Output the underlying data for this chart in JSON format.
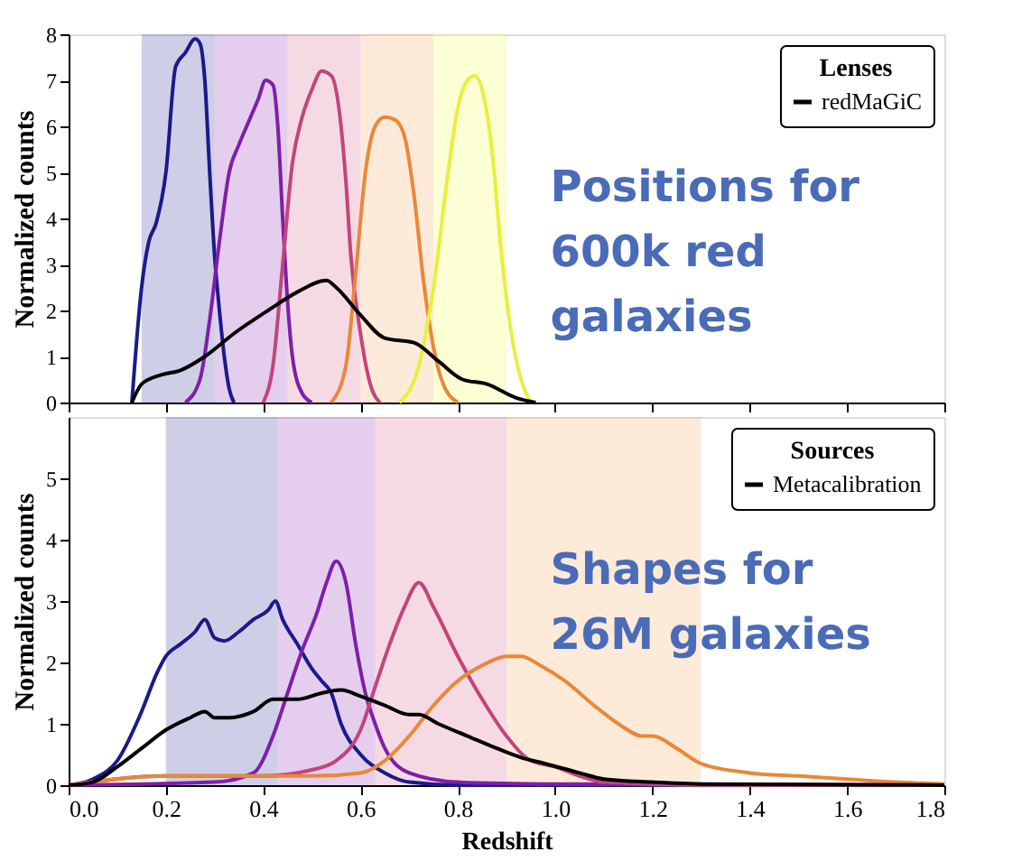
{
  "chart_data": [
    {
      "type": "line",
      "ylabel": "Normalized counts",
      "legend_title": "Lenses",
      "legend": "top right",
      "grid": false,
      "tick_labels": "y",
      "marker": "none",
      "line_style": "solid",
      "xlim": [
        0,
        1.8
      ],
      "xticks": [
        0,
        0.2,
        0.4,
        0.6,
        0.8,
        1.0,
        1.2,
        1.4,
        1.6,
        1.8
      ],
      "ylim": [
        0,
        8
      ],
      "yticks": [
        0,
        1,
        2,
        3,
        4,
        5,
        6,
        7,
        8
      ],
      "annotations": [
        "Positions for\n600k red\ngalaxies"
      ],
      "bands": [
        {
          "axis": "x",
          "from": 0.15,
          "to": 0.3,
          "color": "#0d0887"
        },
        {
          "axis": "x",
          "from": 0.3,
          "to": 0.45,
          "color": "#7e03a8"
        },
        {
          "axis": "x",
          "from": 0.45,
          "to": 0.6,
          "color": "#cc4778"
        },
        {
          "axis": "x",
          "from": 0.6,
          "to": 0.75,
          "color": "#f89540"
        },
        {
          "axis": "x",
          "from": 0.75,
          "to": 0.9,
          "color": "#f0f921"
        }
      ],
      "series": [
        {
          "color": "#1a1a8c",
          "x": [
            0.13,
            0.15,
            0.165,
            0.18,
            0.2,
            0.22,
            0.24,
            0.26,
            0.27,
            0.28,
            0.29,
            0.3,
            0.31,
            0.32,
            0.33,
            0.34
          ],
          "values": [
            0,
            2.5,
            3.5,
            3.9,
            5,
            7.3,
            7.6,
            7.9,
            7.8,
            7,
            5,
            3.2,
            2,
            1,
            0.3,
            0
          ]
        },
        {
          "color": "#7e1fa8",
          "x": [
            0.24,
            0.27,
            0.29,
            0.31,
            0.33,
            0.35,
            0.37,
            0.39,
            0.405,
            0.42,
            0.43,
            0.44,
            0.45,
            0.46,
            0.48,
            0.5
          ],
          "values": [
            0,
            0.5,
            1.8,
            3.5,
            5,
            5.6,
            6.1,
            6.6,
            7.0,
            6.9,
            6,
            4,
            2.2,
            1,
            0.2,
            0
          ]
        },
        {
          "color": "#c2457a",
          "x": [
            0.4,
            0.42,
            0.44,
            0.46,
            0.48,
            0.5,
            0.52,
            0.54,
            0.56,
            0.57,
            0.58,
            0.6,
            0.62,
            0.64
          ],
          "values": [
            0,
            0.8,
            3,
            5.2,
            6.2,
            6.8,
            7.2,
            7.1,
            6.0,
            4.8,
            3.2,
            1.5,
            0.4,
            0
          ]
        },
        {
          "color": "#e8883a",
          "x": [
            0.54,
            0.57,
            0.59,
            0.61,
            0.63,
            0.65,
            0.67,
            0.69,
            0.71,
            0.73,
            0.75,
            0.77,
            0.8
          ],
          "values": [
            0,
            0.8,
            2.8,
            5.0,
            6.0,
            6.2,
            6.15,
            5.8,
            4.5,
            2.6,
            1.2,
            0.4,
            0
          ]
        },
        {
          "color": "#e6f040",
          "x": [
            0.68,
            0.72,
            0.75,
            0.78,
            0.8,
            0.82,
            0.835,
            0.85,
            0.87,
            0.89,
            0.91,
            0.93,
            0.95
          ],
          "values": [
            0,
            0.8,
            2.5,
            5,
            6.4,
            7.0,
            7.1,
            6.8,
            5.5,
            3.2,
            1.5,
            0.5,
            0
          ]
        },
        {
          "name": "redMaGiC",
          "color": "#000000",
          "x": [
            0.13,
            0.15,
            0.19,
            0.23,
            0.28,
            0.34,
            0.41,
            0.47,
            0.53,
            0.55,
            0.6,
            0.65,
            0.71,
            0.76,
            0.81,
            0.86,
            0.92,
            0.96
          ],
          "values": [
            0,
            0.4,
            0.6,
            0.7,
            1.0,
            1.5,
            2.0,
            2.4,
            2.65,
            2.5,
            1.9,
            1.4,
            1.3,
            0.9,
            0.5,
            0.4,
            0.1,
            0
          ]
        }
      ]
    },
    {
      "type": "line",
      "xlabel": "Redshift",
      "ylabel": "Normalized counts",
      "legend_title": "Sources",
      "legend": "top right",
      "grid": false,
      "marker": "none",
      "line_style": "solid",
      "xlim": [
        0,
        1.8
      ],
      "xticks": [
        {
          "value": 0,
          "label": "0.0"
        },
        0.2,
        0.4,
        0.6,
        0.8,
        {
          "value": 1.0,
          "label": "1.0"
        },
        1.2,
        1.4,
        1.6,
        1.8
      ],
      "ylim": [
        0,
        6
      ],
      "yticks": [
        0,
        1,
        2,
        3,
        4,
        5
      ],
      "annotations": [
        "Shapes for\n26M galaxies"
      ],
      "bands": [
        {
          "axis": "x",
          "from": 0.2,
          "to": 0.43,
          "color": "#0d0887"
        },
        {
          "axis": "x",
          "from": 0.43,
          "to": 0.63,
          "color": "#7e03a8"
        },
        {
          "axis": "x",
          "from": 0.63,
          "to": 0.9,
          "color": "#cc4778"
        },
        {
          "axis": "x",
          "from": 0.9,
          "to": 1.3,
          "color": "#f89540"
        }
      ],
      "series": [
        {
          "color": "#1a1a8c",
          "x": [
            0,
            0.05,
            0.1,
            0.15,
            0.18,
            0.2,
            0.23,
            0.26,
            0.28,
            0.3,
            0.32,
            0.35,
            0.38,
            0.41,
            0.425,
            0.44,
            0.47,
            0.5,
            0.52,
            0.54,
            0.56,
            0.6,
            0.65,
            0.7,
            0.8,
            1.0,
            1.8
          ],
          "values": [
            0,
            0.1,
            0.4,
            1.2,
            1.8,
            2.1,
            2.3,
            2.5,
            2.7,
            2.4,
            2.35,
            2.5,
            2.7,
            2.85,
            3.0,
            2.7,
            2.3,
            1.9,
            1.7,
            1.5,
            1.0,
            0.5,
            0.2,
            0.05,
            0,
            0,
            0
          ]
        },
        {
          "color": "#7e1fa8",
          "x": [
            0,
            0.3,
            0.38,
            0.42,
            0.45,
            0.48,
            0.51,
            0.53,
            0.55,
            0.57,
            0.59,
            0.61,
            0.63,
            0.65,
            0.7,
            0.8,
            1.0,
            1.8
          ],
          "values": [
            0,
            0.05,
            0.2,
            0.8,
            1.5,
            2.2,
            2.8,
            3.3,
            3.65,
            3.3,
            2.3,
            1.5,
            1.0,
            0.6,
            0.2,
            0.05,
            0.02,
            0
          ]
        },
        {
          "color": "#c2457a",
          "x": [
            0,
            0.2,
            0.4,
            0.5,
            0.55,
            0.6,
            0.63,
            0.66,
            0.69,
            0.72,
            0.75,
            0.8,
            0.85,
            0.9,
            0.95,
            1.0,
            1.05,
            1.1,
            1.3,
            1.8
          ],
          "values": [
            0,
            0.15,
            0.15,
            0.25,
            0.4,
            0.9,
            1.6,
            2.3,
            2.9,
            3.3,
            2.9,
            2.1,
            1.4,
            0.8,
            0.4,
            0.3,
            0.15,
            0.05,
            0,
            0
          ]
        },
        {
          "color": "#e8883a",
          "x": [
            0,
            0.1,
            0.2,
            0.3,
            0.5,
            0.6,
            0.65,
            0.7,
            0.75,
            0.8,
            0.85,
            0.9,
            0.93,
            0.97,
            1.02,
            1.08,
            1.13,
            1.18,
            1.2,
            1.25,
            1.3,
            1.4,
            1.5,
            1.6,
            1.7,
            1.8
          ],
          "values": [
            0,
            0.1,
            0.15,
            0.15,
            0.15,
            0.2,
            0.4,
            0.8,
            1.3,
            1.7,
            1.95,
            2.1,
            2.1,
            1.95,
            1.7,
            1.3,
            1.0,
            0.8,
            0.8,
            0.6,
            0.35,
            0.2,
            0.15,
            0.1,
            0.05,
            0.02
          ]
        },
        {
          "name": "Metacalibration",
          "color": "#000000",
          "x": [
            0,
            0.05,
            0.1,
            0.15,
            0.2,
            0.25,
            0.28,
            0.3,
            0.33,
            0.38,
            0.42,
            0.47,
            0.52,
            0.56,
            0.6,
            0.65,
            0.7,
            0.72,
            0.76,
            0.82,
            0.88,
            0.93,
            0.98,
            1.05,
            1.1,
            1.2,
            1.3,
            1.8
          ],
          "values": [
            0,
            0.05,
            0.3,
            0.6,
            0.9,
            1.1,
            1.2,
            1.1,
            1.1,
            1.2,
            1.4,
            1.4,
            1.5,
            1.55,
            1.45,
            1.3,
            1.15,
            1.15,
            1.0,
            0.8,
            0.6,
            0.45,
            0.35,
            0.2,
            0.1,
            0.05,
            0.02,
            0
          ]
        }
      ]
    }
  ]
}
